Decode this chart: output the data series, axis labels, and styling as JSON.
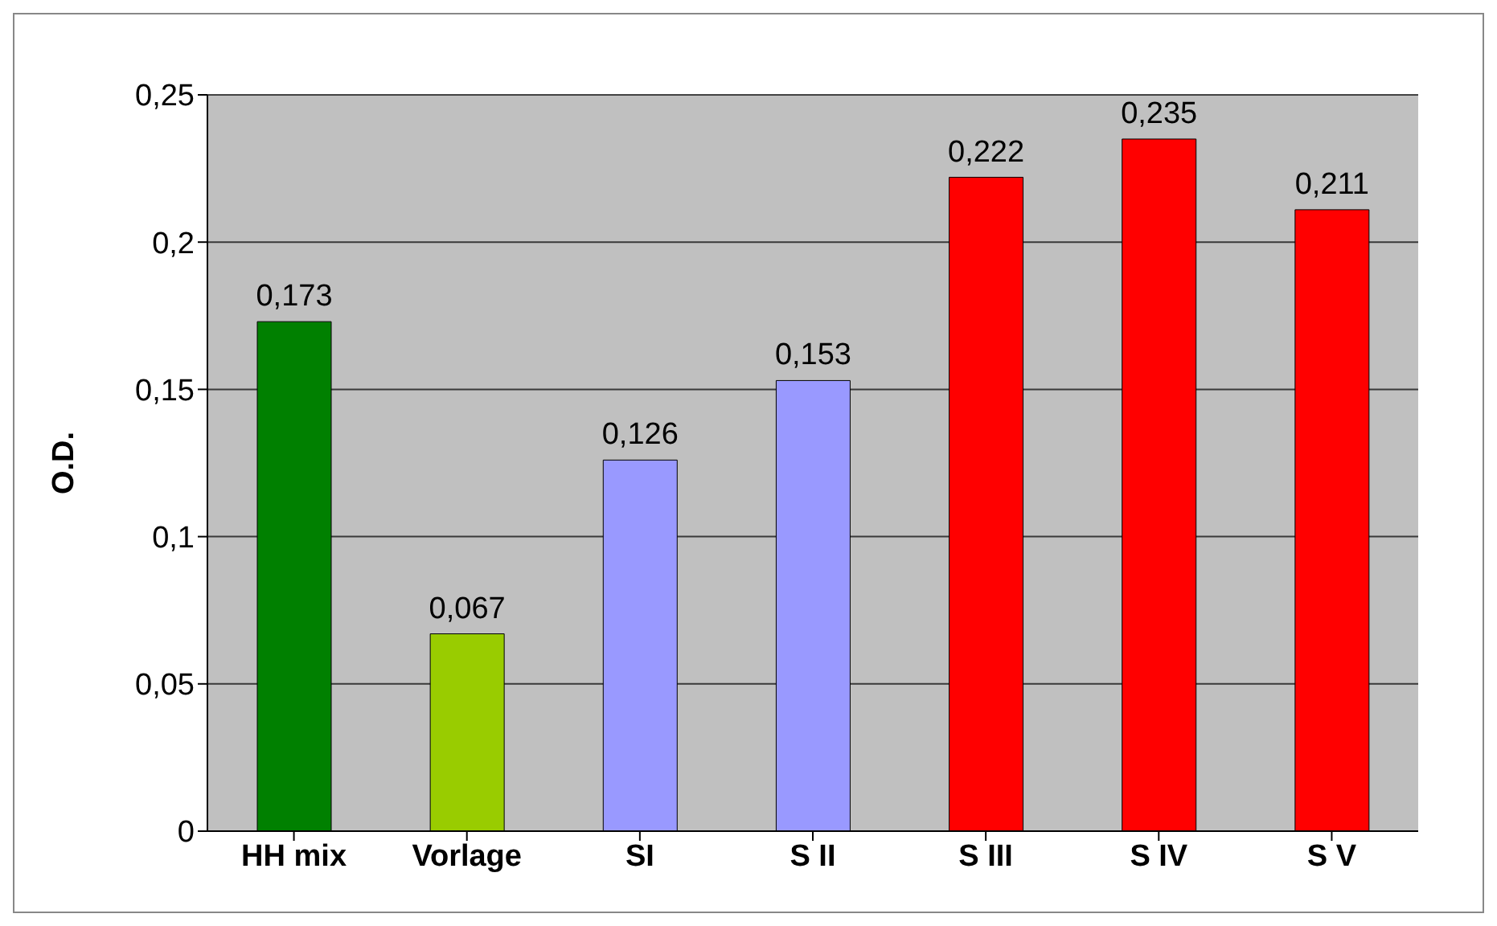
{
  "chart_data": {
    "type": "bar",
    "ylabel": "O.D.",
    "categories": [
      "HH mix",
      "Vorlage",
      "SI",
      "S II",
      "S III",
      "S IV",
      "S V"
    ],
    "values": [
      0.173,
      0.067,
      0.126,
      0.153,
      0.222,
      0.235,
      0.211
    ],
    "colors": [
      "#008000",
      "#99cc00",
      "#9999ff",
      "#9999ff",
      "#ff0000",
      "#ff0000",
      "#ff0000"
    ],
    "value_labels": [
      "0,173",
      "0,067",
      "0,126",
      "0,153",
      "0,222",
      "0,235",
      "0,211"
    ],
    "ylim": [
      0,
      0.25
    ],
    "yticks": [
      {
        "value": 0,
        "label": "0"
      },
      {
        "value": 0.05,
        "label": "0,05"
      },
      {
        "value": 0.1,
        "label": "0,1"
      },
      {
        "value": 0.15,
        "label": "0,15"
      },
      {
        "value": 0.2,
        "label": "0,2"
      },
      {
        "value": 0.25,
        "label": "0,25"
      }
    ],
    "grid": "y"
  }
}
